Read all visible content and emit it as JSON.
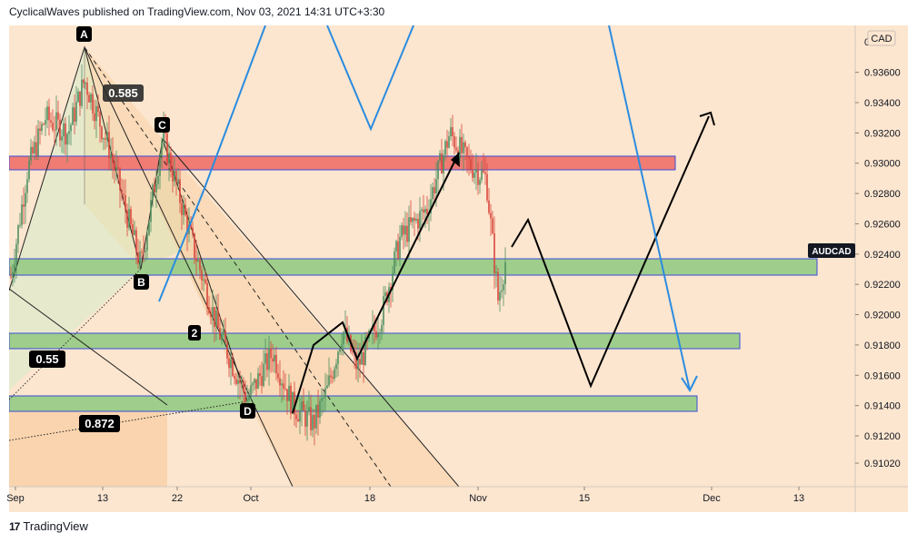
{
  "header": {
    "published_line": "CyclicalWaves published on TradingView.com, Nov 03, 2021 14:31 UTC+3:30"
  },
  "footer": {
    "logo_mark": "17",
    "logo_text": "TradingView"
  },
  "chart_data": {
    "type": "candlestick",
    "symbol": "AUDCAD",
    "currency_label": "CAD",
    "price_axis": {
      "ticks": [
        0.9102,
        0.912,
        0.914,
        0.916,
        0.918,
        0.92,
        0.922,
        0.924,
        0.926,
        0.928,
        0.93,
        0.932,
        0.934,
        0.936
      ],
      "tick_labels": [
        "0.91020",
        "0.91200",
        "0.91400",
        "0.91600",
        "0.91800",
        "0.92000",
        "0.92200",
        "0.92400",
        "0.92600",
        "0.92800",
        "0.93000",
        "0.93200",
        "0.93400",
        "0.93600"
      ],
      "top_label": "0",
      "range": [
        0.9088,
        0.938
      ]
    },
    "time_axis": {
      "labels": [
        "Sep",
        "13",
        "22",
        "Oct",
        "18",
        "Nov",
        "15",
        "Dec",
        "13"
      ]
    },
    "zones": [
      {
        "type": "resistance",
        "low": 0.9296,
        "high": 0.9305,
        "color": "#f07c74"
      },
      {
        "type": "support",
        "low": 0.9228,
        "high": 0.9238,
        "color": "#9fcd8b"
      },
      {
        "type": "support",
        "low": 0.9175,
        "high": 0.9186,
        "color": "#9fcd8b"
      },
      {
        "type": "support",
        "low": 0.9135,
        "high": 0.9145,
        "color": "#9fcd8b"
      }
    ],
    "harmonic_points": [
      {
        "label": "A",
        "date": "2021-09-10",
        "price": 0.9355
      },
      {
        "label": "B",
        "date": "2021-09-17",
        "price": 0.9232
      },
      {
        "label": "C",
        "date": "2021-09-20",
        "price": 0.9318
      },
      {
        "label": "D",
        "date": "2021-09-30",
        "price": 0.9144
      }
    ],
    "ratio_labels": [
      "0.585",
      "0.55",
      "0.872"
    ],
    "wave_labels": [
      "2"
    ],
    "colors": {
      "background": "#fde6cf",
      "up_candle": "#4f8f60",
      "down_candle": "#d9463c",
      "projection_blue": "#2a8ce0",
      "projection_black": "#000000",
      "symbol_badge": "#131722"
    }
  }
}
